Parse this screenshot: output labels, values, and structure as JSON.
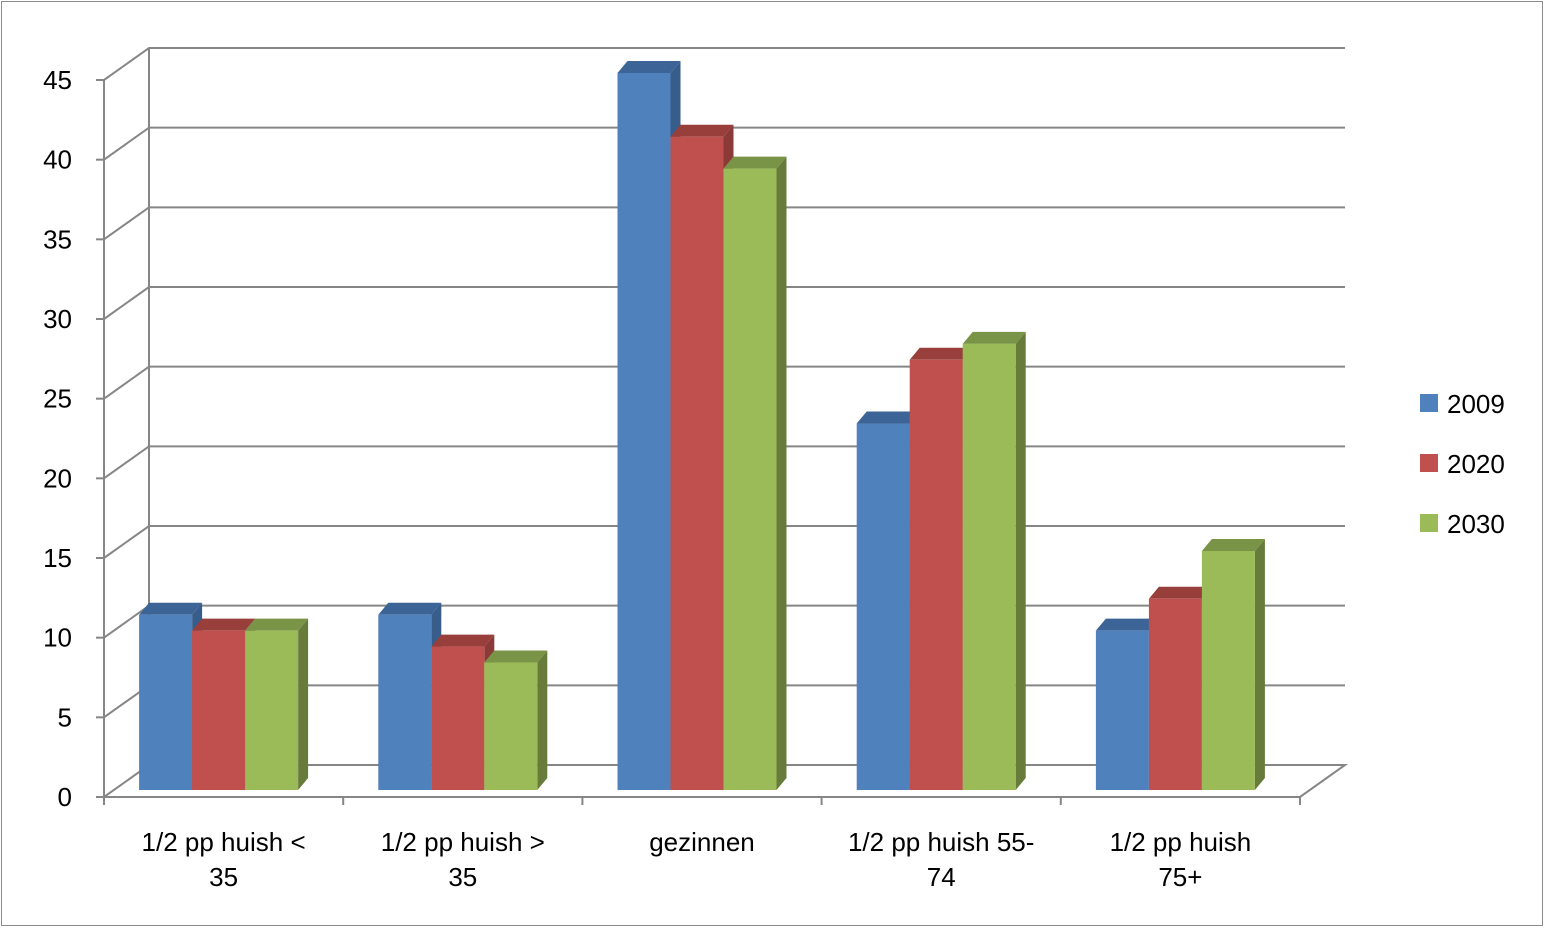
{
  "chart_data": {
    "type": "bar",
    "title": "",
    "xlabel": "",
    "ylabel": "",
    "ylim": [
      0,
      45
    ],
    "ytick_step": 5,
    "grid": true,
    "legend_position": "right",
    "categories": [
      [
        "1/2 pp huish <",
        "35"
      ],
      [
        "1/2 pp huish >",
        "35"
      ],
      [
        "gezinnen"
      ],
      [
        "1/2 pp huish 55-",
        "74"
      ],
      [
        "1/2 pp huish",
        "75+"
      ]
    ],
    "series": [
      {
        "name": "2009",
        "color": "#4f81bd",
        "side": "#385d8a",
        "top": "#3c6496",
        "values": [
          11,
          11,
          45,
          23,
          10
        ]
      },
      {
        "name": "2020",
        "color": "#c0504d",
        "side": "#8c3a38",
        "top": "#983f3c",
        "values": [
          10,
          9,
          41,
          27,
          12
        ]
      },
      {
        "name": "2030",
        "color": "#9bbb59",
        "side": "#677b3b",
        "top": "#7a9447",
        "values": [
          10,
          8,
          39,
          28,
          15
        ]
      }
    ]
  }
}
